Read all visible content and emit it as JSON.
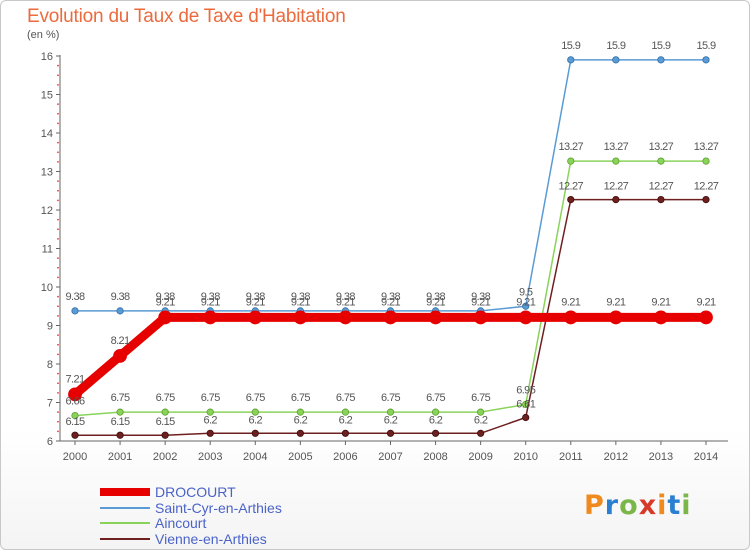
{
  "header": {
    "title": "Evolution du Taux de Taxe d'Habitation",
    "subtitle": "(en %)"
  },
  "logo": {
    "letters": [
      "P",
      "r",
      "o",
      "x",
      "i",
      "t",
      "i"
    ],
    "colors": [
      "#f08a1f",
      "#2a7fd0",
      "#7ab648",
      "#d83a2a",
      "#f08a1f",
      "#2a7fd0",
      "#7ab648"
    ]
  },
  "chart_data": {
    "type": "line",
    "x": [
      "2000",
      "2001",
      "2002",
      "2003",
      "2004",
      "2005",
      "2006",
      "2007",
      "2008",
      "2009",
      "2010",
      "2011",
      "2012",
      "2013",
      "2014"
    ],
    "ylim": [
      6,
      16
    ],
    "yticks": [
      "6",
      "7",
      "8",
      "9",
      "10",
      "11",
      "12",
      "13",
      "14",
      "15",
      "16"
    ],
    "grid": false,
    "legend_position": "bottom-left",
    "series": [
      {
        "name": "DROCOURT",
        "color": "#e60000",
        "values": [
          7.21,
          8.21,
          9.21,
          9.21,
          9.21,
          9.21,
          9.21,
          9.21,
          9.21,
          9.21,
          9.21,
          9.21,
          9.21,
          9.21,
          9.21
        ],
        "labels": [
          "7.21",
          "8.21",
          "9.21",
          "9.21",
          "9.21",
          "9.21",
          "9.21",
          "9.21",
          "9.21",
          "9.21",
          "9.21",
          "9.21",
          "9.21",
          "9.21",
          "9.21"
        ]
      },
      {
        "name": "Saint-Cyr-en-Arthies",
        "color": "#5b9bd5",
        "values": [
          9.38,
          9.38,
          9.38,
          9.38,
          9.38,
          9.38,
          9.38,
          9.38,
          9.38,
          9.38,
          9.5,
          15.9,
          15.9,
          15.9,
          15.9
        ],
        "labels": [
          "9.38",
          "9.38",
          "9.38",
          "9.38",
          "9.38",
          "9.38",
          "9.38",
          "9.38",
          "9.38",
          "9.38",
          "9.5",
          "15.9",
          "15.9",
          "15.9",
          "15.9"
        ]
      },
      {
        "name": "Aincourt",
        "color": "#8ad35a",
        "values": [
          6.66,
          6.75,
          6.75,
          6.75,
          6.75,
          6.75,
          6.75,
          6.75,
          6.75,
          6.75,
          6.95,
          13.27,
          13.27,
          13.27,
          13.27
        ],
        "labels": [
          "6.66",
          "6.75",
          "6.75",
          "6.75",
          "6.75",
          "6.75",
          "6.75",
          "6.75",
          "6.75",
          "6.75",
          "6.95",
          "13.27",
          "13.27",
          "13.27",
          "13.27"
        ]
      },
      {
        "name": "Vienne-en-Arthies",
        "color": "#6e1f1f",
        "values": [
          6.15,
          6.15,
          6.15,
          6.2,
          6.2,
          6.2,
          6.2,
          6.2,
          6.2,
          6.2,
          6.61,
          12.27,
          12.27,
          12.27,
          12.27
        ],
        "labels": [
          "6.15",
          "6.15",
          "6.15",
          "6.2",
          "6.2",
          "6.2",
          "6.2",
          "6.2",
          "6.2",
          "6.2",
          "6.61",
          "12.27",
          "12.27",
          "12.27",
          "12.27"
        ]
      }
    ]
  }
}
